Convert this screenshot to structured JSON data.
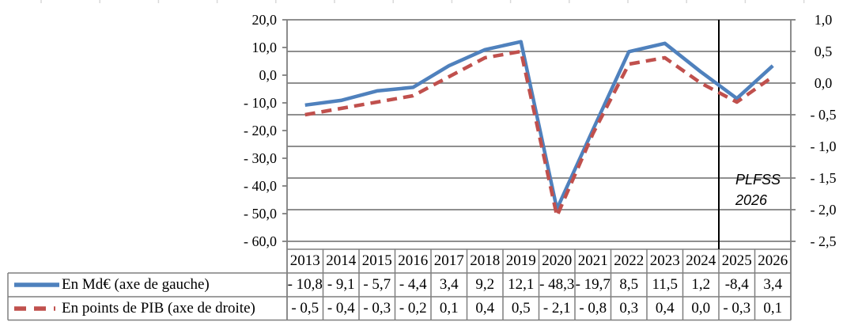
{
  "chart_data": {
    "type": "line",
    "title": "",
    "categories": [
      "2013",
      "2014",
      "2015",
      "2016",
      "2017",
      "2018",
      "2019",
      "2020",
      "2021",
      "2022",
      "2023",
      "2024",
      "2025",
      "2026"
    ],
    "series": [
      {
        "name": "En Md€ (axe de gauche)",
        "axis": "left",
        "color": "#4F81BD",
        "style": "solid",
        "values": [
          -10.8,
          -9.1,
          -5.7,
          -4.4,
          3.4,
          9.2,
          12.1,
          -48.3,
          -19.7,
          8.5,
          11.5,
          1.2,
          -8.4,
          3.4
        ],
        "display_values": [
          "- 10,8",
          "- 9,1",
          "- 5,7",
          "- 4,4",
          "3,4",
          "9,2",
          "12,1",
          "- 48,3",
          "- 19,7",
          "8,5",
          "11,5",
          "1,2",
          "-8,4",
          "3,4"
        ]
      },
      {
        "name": "En points de PIB (axe de droite)",
        "axis": "right",
        "color": "#C0504D",
        "style": "dashed",
        "values": [
          -0.5,
          -0.4,
          -0.3,
          -0.2,
          0.1,
          0.4,
          0.5,
          -2.1,
          -0.8,
          0.3,
          0.4,
          0.0,
          -0.3,
          0.1
        ],
        "display_values": [
          "- 0,5",
          "- 0,4",
          "- 0,3",
          "- 0,2",
          "0,1",
          "0,4",
          "0,5",
          "- 2,1",
          "- 0,8",
          "0,3",
          "0,4",
          "0,0",
          "- 0,3",
          "0,1"
        ]
      }
    ],
    "left_axis": {
      "min": -60,
      "max": 20,
      "step": 10,
      "tick_labels": [
        "20,0",
        "10,0",
        "0,0",
        "- 10,0",
        "- 20,0",
        "- 30,0",
        "- 40,0",
        "- 50,0",
        "- 60,0"
      ]
    },
    "right_axis": {
      "min": -2.5,
      "max": 1.0,
      "step": 0.5,
      "tick_labels": [
        "1,0",
        "0,5",
        "0,0",
        "- 0,5",
        "- 1,0",
        "- 1,5",
        "- 2,0",
        "- 2,5"
      ]
    },
    "annotation": {
      "line1": "PLFSS",
      "line2": "2026",
      "after_category": "2024"
    },
    "grid": "horizontal",
    "legend_position": "data-table-left",
    "colors": {
      "grid": "#7f7f7f",
      "table_border": "#7f7f7f",
      "divider": "#000000",
      "top_ticks": "#d9d9d9"
    }
  }
}
